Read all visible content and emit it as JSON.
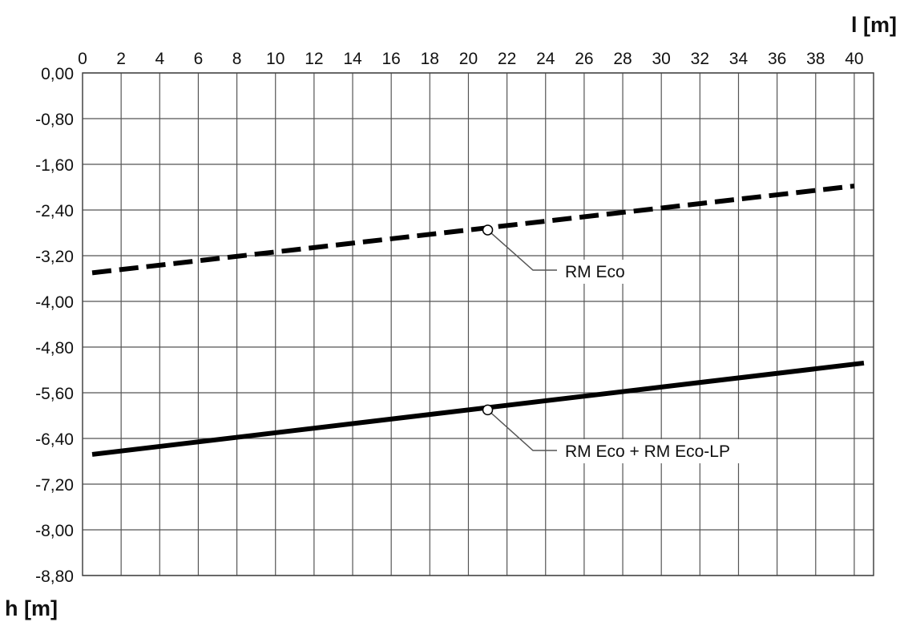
{
  "chart_data": {
    "type": "line",
    "title": "",
    "xlabel": "l [m]",
    "ylabel": "h [m]",
    "x_axis_position": "top",
    "xlim": [
      0.5,
      40
    ],
    "ylim": [
      -8.8,
      0
    ],
    "grid": true,
    "x_ticks": [
      0,
      2,
      4,
      6,
      8,
      10,
      12,
      14,
      16,
      18,
      20,
      22,
      24,
      26,
      28,
      30,
      32,
      34,
      36,
      38,
      40
    ],
    "x_tick_labels": [
      "0",
      "2",
      "4",
      "6",
      "8",
      "10",
      "12",
      "14",
      "16",
      "18",
      "20",
      "22",
      "24",
      "26",
      "28",
      "30",
      "32",
      "34",
      "36",
      "38",
      "40"
    ],
    "y_ticks": [
      0,
      -0.8,
      -1.6,
      -2.4,
      -3.2,
      -4.0,
      -4.8,
      -5.6,
      -6.4,
      -7.2,
      -8.0,
      -8.8
    ],
    "y_tick_labels": [
      "0,00",
      "-0,80",
      "-1,60",
      "-2,40",
      "-3,20",
      "-4,00",
      "-4,80",
      "-5,60",
      "-6,40",
      "-7,20",
      "-8,00",
      "-8,80"
    ],
    "series": [
      {
        "name": "RM Eco",
        "line_style": "dashed",
        "color": "#000000",
        "x": [
          0.5,
          40
        ],
        "y": [
          -3.5,
          -1.98
        ],
        "marker": {
          "x": 21,
          "y": -2.75
        }
      },
      {
        "name": "RM Eco + RM Eco-LP",
        "line_style": "solid",
        "color": "#000000",
        "x": [
          0.5,
          40.5
        ],
        "y": [
          -6.68,
          -5.08
        ],
        "marker": {
          "x": 21,
          "y": -5.9
        }
      }
    ],
    "annotations": [
      {
        "text": "RM Eco",
        "series": 0
      },
      {
        "text": "RM Eco + RM Eco-LP",
        "series": 1
      }
    ]
  }
}
